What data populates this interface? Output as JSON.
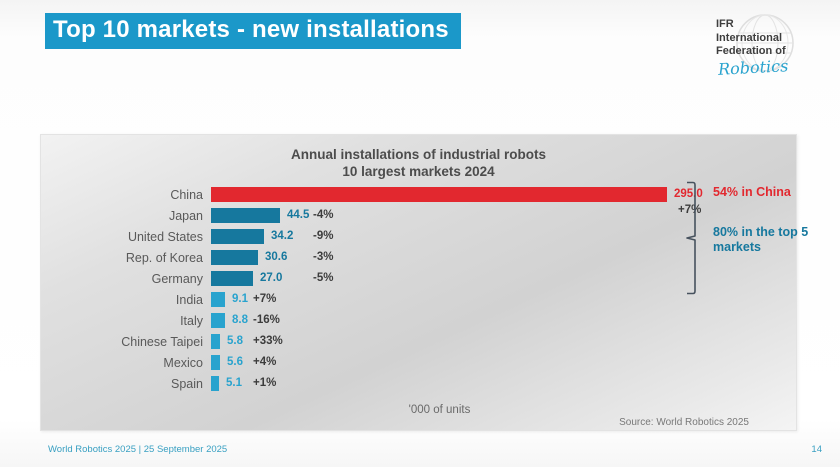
{
  "slide": {
    "title": "Top 10 markets - new installations",
    "footer": {
      "left": "World Robotics 2025  | 25 September 2025",
      "page": "14"
    }
  },
  "logo": {
    "line1": "IFR",
    "line2": "International",
    "line3": "Federation of",
    "script": "Robotics"
  },
  "colors": {
    "accent_blue": "#1b98c9",
    "china_red": "#e2282f",
    "top5_teal": "#16789e",
    "rest_cyan": "#29a3ce",
    "pct_gray": "#3c3c3c",
    "footer_teal": "#39a0c2",
    "bracket": "#47525e"
  },
  "chart_data": {
    "type": "bar",
    "orientation": "horizontal",
    "title": "Annual installations of industrial robots",
    "subtitle": "10 largest markets 2024",
    "xlabel": "'000 of units",
    "xlim": [
      0,
      295
    ],
    "grid": false,
    "legend": false,
    "source": "Source: World Robotics 2025",
    "categories": [
      "China",
      "Japan",
      "United States",
      "Rep. of Korea",
      "Germany",
      "India",
      "Italy",
      "Chinese Taipei",
      "Mexico",
      "Spain"
    ],
    "values": [
      295.0,
      44.5,
      34.2,
      30.6,
      27.0,
      9.1,
      8.8,
      5.8,
      5.6,
      5.1
    ],
    "changes": [
      "+7%",
      "-4%",
      "-9%",
      "-3%",
      "-5%",
      "+7%",
      "-16%",
      "+33%",
      "+4%",
      "+1%"
    ],
    "rows": [
      {
        "label": "China",
        "value": 295.0,
        "value_label": "295.0",
        "change": "+7%",
        "group": "china"
      },
      {
        "label": "Japan",
        "value": 44.5,
        "value_label": "44.5",
        "change": "-4%",
        "group": "top5"
      },
      {
        "label": "United States",
        "value": 34.2,
        "value_label": "34.2",
        "change": "-9%",
        "group": "top5"
      },
      {
        "label": "Rep. of Korea",
        "value": 30.6,
        "value_label": "30.6",
        "change": "-3%",
        "group": "top5"
      },
      {
        "label": "Germany",
        "value": 27.0,
        "value_label": "27.0",
        "change": "-5%",
        "group": "top5"
      },
      {
        "label": "India",
        "value": 9.1,
        "value_label": "9.1",
        "change": "+7%",
        "group": "rest"
      },
      {
        "label": "Italy",
        "value": 8.8,
        "value_label": "8.8",
        "change": "-16%",
        "group": "rest"
      },
      {
        "label": "Chinese Taipei",
        "value": 5.8,
        "value_label": "5.8",
        "change": "+33%",
        "group": "rest"
      },
      {
        "label": "Mexico",
        "value": 5.6,
        "value_label": "5.6",
        "change": "+4%",
        "group": "rest"
      },
      {
        "label": "Spain",
        "value": 5.1,
        "value_label": "5.1",
        "change": "+1%",
        "group": "rest"
      }
    ],
    "annotations": {
      "china_share": "54% in China",
      "top5_share": "80% in the top 5 markets"
    }
  }
}
